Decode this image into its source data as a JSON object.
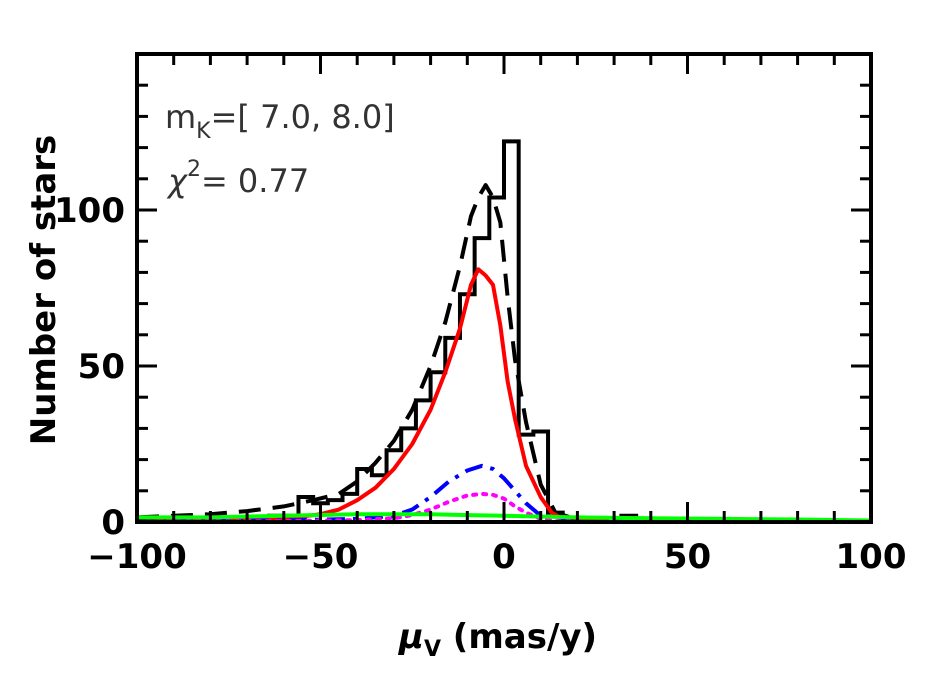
{
  "chart_data": {
    "type": "line",
    "xlabel_symbol": "μ",
    "xlabel_sub": "V",
    "xlabel_rest": " (mas/y)",
    "ylabel": "Number of stars",
    "xlim": [
      -100,
      100
    ],
    "ylim": [
      0,
      150
    ],
    "xticks": [
      -100,
      -50,
      0,
      50,
      100
    ],
    "xtick_labels": [
      "−100",
      "−50",
      "0",
      "50",
      "100"
    ],
    "yticks": [
      0,
      50,
      100
    ],
    "ytick_labels": [
      "0",
      "50",
      "100"
    ],
    "x_minor_step": 10,
    "y_minor_step": 10,
    "grid": false,
    "annotations": {
      "line1_main": "m",
      "line1_sub": "K",
      "line1_rest": "=[  7.0,  8.0]",
      "line2_main": "χ",
      "line2_sup": "2",
      "line2_rest": "=  0.77"
    },
    "histogram": {
      "color": "#000000",
      "bin_width": 4,
      "edges": [
        -100,
        -96,
        -92,
        -88,
        -84,
        -80,
        -76,
        -72,
        -68,
        -64,
        -60,
        -56,
        -52,
        -48,
        -44,
        -40,
        -36,
        -32,
        -28,
        -24,
        -20,
        -16,
        -12,
        -8,
        -4,
        0,
        4,
        8,
        12,
        16,
        20,
        24,
        28,
        32,
        36,
        40,
        100
      ],
      "counts": [
        1,
        1,
        1,
        1,
        1,
        1,
        1,
        1,
        1,
        2,
        2,
        8,
        6,
        7,
        9,
        17,
        15,
        23,
        30,
        39,
        48,
        59,
        73,
        91,
        104,
        122,
        28,
        29,
        3,
        1,
        1,
        1,
        0,
        2,
        0,
        0
      ]
    },
    "series": [
      {
        "style": "dashed",
        "color": "#000000",
        "x": [
          -100,
          -90,
          -80,
          -70,
          -60,
          -52,
          -45,
          -40,
          -35,
          -30,
          -25,
          -20,
          -16,
          -12,
          -9,
          -7,
          -5,
          -3,
          -1,
          1,
          3,
          6,
          10,
          14,
          18,
          25,
          35,
          50,
          70,
          100
        ],
        "y": [
          1.5,
          2,
          2.5,
          3.5,
          5,
          7,
          9,
          13,
          19,
          26,
          36,
          50,
          64,
          82,
          98,
          104,
          108,
          104,
          96,
          72,
          52,
          32,
          12,
          3,
          1.5,
          1,
          1,
          1,
          0.5,
          0.5
        ]
      },
      {
        "style": "solid",
        "color": "#ff0000",
        "x": [
          -100,
          -80,
          -60,
          -50,
          -45,
          -40,
          -35,
          -30,
          -25,
          -20,
          -16,
          -12,
          -9,
          -7,
          -5,
          -3,
          -1,
          1,
          3,
          6,
          10,
          13,
          16,
          20,
          30,
          50,
          100
        ],
        "y": [
          0,
          0.5,
          1,
          2.5,
          4,
          7,
          11,
          17,
          25,
          36,
          48,
          62,
          76,
          81,
          79,
          76,
          63,
          45,
          33,
          18,
          8,
          3,
          1,
          0.5,
          0,
          0,
          0
        ]
      },
      {
        "style": "dashdot",
        "color": "#0000ff",
        "x": [
          -100,
          -60,
          -40,
          -30,
          -25,
          -20,
          -15,
          -10,
          -6,
          -3,
          0,
          3,
          6,
          10,
          14,
          20,
          40,
          100
        ],
        "y": [
          0,
          0.5,
          1,
          2,
          4,
          8,
          13,
          16.5,
          18,
          17,
          14,
          10,
          6,
          2,
          0.5,
          0,
          0,
          0
        ]
      },
      {
        "style": "dotted",
        "color": "#ff00ff",
        "x": [
          -100,
          -60,
          -40,
          -30,
          -25,
          -20,
          -15,
          -10,
          -6,
          -3,
          0,
          3,
          6,
          10,
          14,
          20,
          40,
          100
        ],
        "y": [
          0,
          0.3,
          0.6,
          1.2,
          2.2,
          4,
          6.5,
          8.5,
          9,
          8.7,
          7.5,
          5,
          3,
          1,
          0.3,
          0,
          0,
          0
        ]
      },
      {
        "style": "solid",
        "color": "#00ff00",
        "x": [
          -100,
          -80,
          -60,
          -40,
          -30,
          -20,
          -10,
          0,
          20,
          40,
          60,
          80,
          100
        ],
        "y": [
          1.5,
          1.5,
          2,
          2.5,
          2.5,
          2.5,
          2.2,
          2,
          1.5,
          1.2,
          1,
          0.8,
          0.5
        ]
      }
    ]
  }
}
